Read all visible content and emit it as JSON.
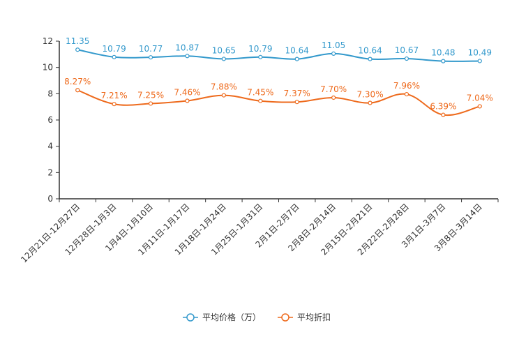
{
  "chart_data": {
    "type": "line",
    "title": "",
    "xlabel": "",
    "ylabel": "",
    "ylim": [
      0,
      12
    ],
    "yticks": [
      0,
      2,
      4,
      6,
      8,
      10,
      12
    ],
    "grid": false,
    "legend_position": "bottom-center",
    "categories": [
      "12月21日-12月27日",
      "12月28日-1月3日",
      "1月4日-1月10日",
      "1月11日-1月17日",
      "1月18日-1月24日",
      "1月25日-1月31日",
      "2月1日-2月7日",
      "2月8日-2月14日",
      "2月15日-2月21日",
      "2月22日-2月28日",
      "3月1日-3月7日",
      "3月8日-3月14日"
    ],
    "series": [
      {
        "name": "平均价格（万）",
        "color": "#3399cc",
        "values": [
          11.35,
          10.79,
          10.77,
          10.87,
          10.65,
          10.79,
          10.64,
          11.05,
          10.64,
          10.67,
          10.48,
          10.49
        ],
        "labels": [
          "11.35",
          "10.79",
          "10.77",
          "10.87",
          "10.65",
          "10.79",
          "10.64",
          "11.05",
          "10.64",
          "10.67",
          "10.48",
          "10.49"
        ]
      },
      {
        "name": "平均折扣",
        "color": "#ee6a1c",
        "values": [
          8.27,
          7.21,
          7.25,
          7.46,
          7.88,
          7.45,
          7.37,
          7.7,
          7.3,
          7.96,
          6.39,
          7.04
        ],
        "labels": [
          "8.27%",
          "7.21%",
          "7.25%",
          "7.46%",
          "7.88%",
          "7.45%",
          "7.37%",
          "7.70%",
          "7.30%",
          "7.96%",
          "6.39%",
          "7.04%"
        ]
      }
    ]
  }
}
